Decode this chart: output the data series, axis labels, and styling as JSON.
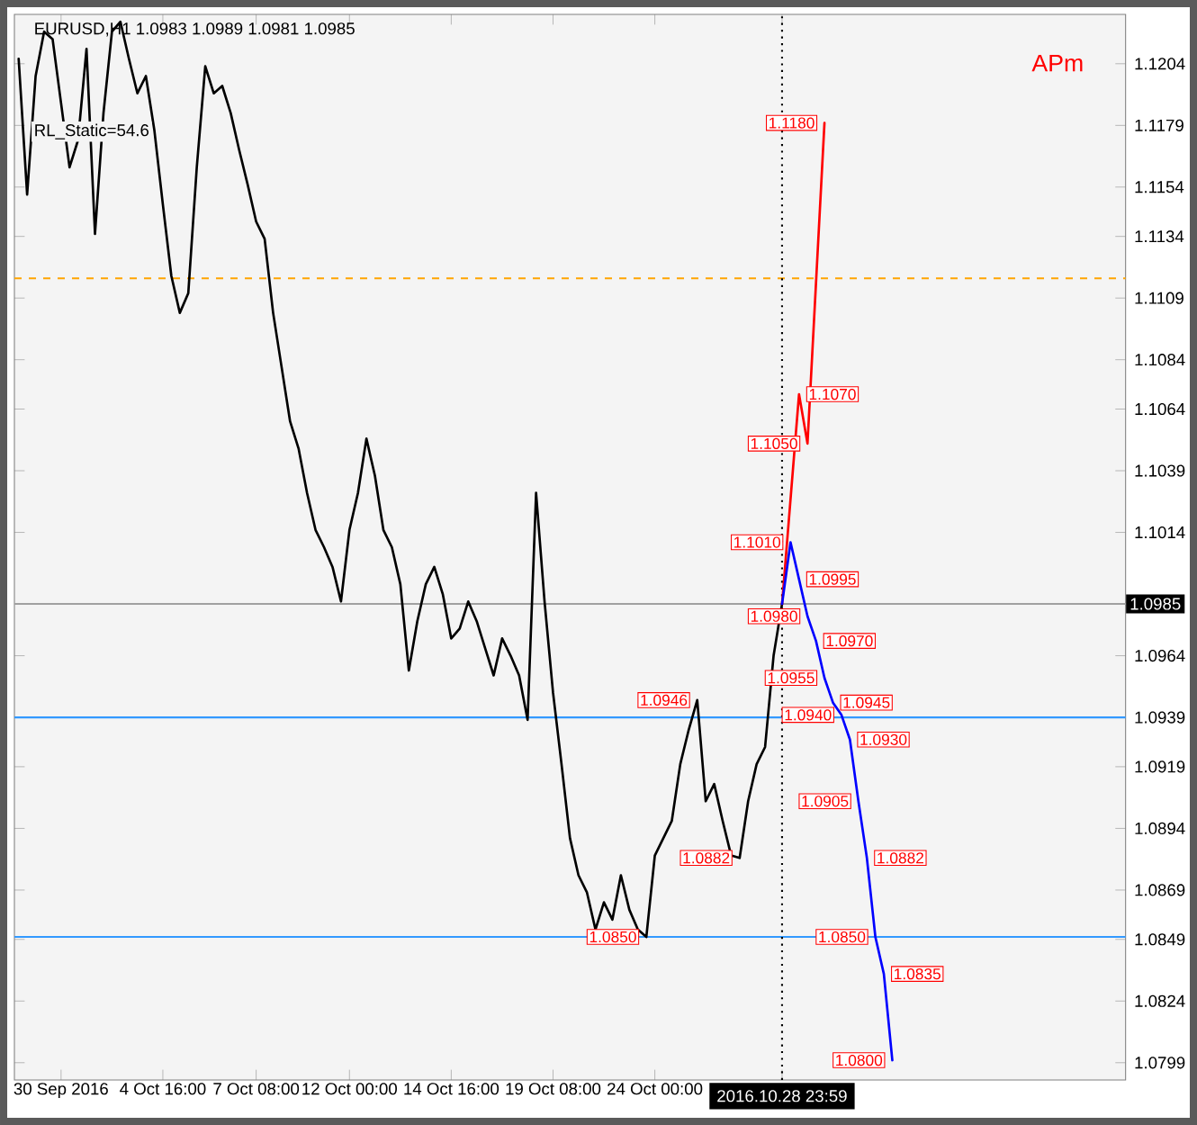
{
  "chart_data": {
    "type": "line",
    "title": "EURUSD,H1  1.0983 1.0989 1.0981 1.0985",
    "categories": [
      null,
      null,
      null,
      null,
      null,
      "30 Sep 2016",
      null,
      null,
      null,
      null,
      null,
      null,
      null,
      null,
      null,
      null,
      null,
      "4 Oct 16:00",
      null,
      null,
      null,
      null,
      null,
      null,
      null,
      null,
      null,
      null,
      "7 Oct 08:00",
      null,
      null,
      null,
      null,
      null,
      null,
      null,
      null,
      null,
      null,
      "12 Oct 00:00",
      null,
      null,
      null,
      null,
      null,
      null,
      null,
      null,
      null,
      null,
      null,
      "14 Oct 16:00",
      null,
      null,
      null,
      null,
      null,
      null,
      null,
      null,
      null,
      null,
      null,
      "19 Oct 08:00",
      null,
      null,
      null,
      null,
      null,
      null,
      null,
      null,
      null,
      null,
      null,
      "24 Oct 00:00",
      null,
      null,
      null,
      null,
      null,
      null,
      null,
      null,
      null,
      null,
      null,
      null,
      null,
      null,
      "2016.10.28 23:59",
      null,
      null,
      null,
      null,
      null,
      null,
      null,
      null,
      null,
      null,
      null,
      null,
      null,
      null,
      null,
      null,
      null,
      null,
      null,
      null,
      null,
      null,
      null,
      null,
      null,
      null,
      null,
      null,
      null,
      null,
      null,
      null,
      null,
      null,
      null,
      null,
      null,
      null,
      null,
      null
    ],
    "series": [
      {
        "color": "#000000",
        "values": [
          1.1206,
          1.1151,
          1.1199,
          1.1217,
          1.1214,
          1.1188,
          1.1162,
          1.1173,
          1.121,
          1.1135,
          1.1184,
          1.1217,
          1.1221,
          1.1206,
          1.1192,
          1.1199,
          1.1177,
          1.1147,
          1.1118,
          1.1103,
          1.1111,
          1.1162,
          1.1203,
          1.1192,
          1.1195,
          1.1184,
          1.1169,
          1.1155,
          1.114,
          1.1133,
          1.1103,
          1.1081,
          1.1059,
          1.1048,
          1.103,
          1.1015,
          1.1008,
          1.1,
          1.0986,
          1.1015,
          1.103,
          1.1052,
          1.1037,
          1.1015,
          1.1008,
          1.0993,
          1.0958,
          1.0978,
          1.0993,
          1.1,
          1.0989,
          1.0971,
          1.0975,
          1.0986,
          1.0978,
          1.0967,
          1.0956,
          1.0971,
          1.0964,
          1.0956,
          1.0938,
          1.103,
          1.0986,
          1.0949,
          1.092,
          1.089,
          1.0875,
          1.0868,
          1.0853,
          1.0864,
          1.0857,
          1.0875,
          1.0861,
          1.0853,
          1.085,
          1.0883,
          1.089,
          1.0897,
          1.092,
          1.0934,
          1.0946,
          1.0905,
          1.0912,
          1.0897,
          1.0883,
          1.0882,
          1.0905,
          1.092,
          1.0927,
          1.0964,
          1.0985,
          null,
          null,
          null,
          null,
          null,
          null,
          null,
          null,
          null,
          null,
          null,
          null,
          null,
          null,
          null,
          null,
          null,
          null,
          null,
          null,
          null,
          null,
          null,
          null,
          null,
          null,
          null,
          null,
          null,
          null,
          null,
          null,
          null,
          null,
          null,
          null,
          null,
          null,
          null,
          null
        ],
        "value_labels": [
          null,
          null,
          null,
          null,
          null,
          null,
          null,
          null,
          null,
          null,
          null,
          null,
          null,
          null,
          null,
          null,
          null,
          null,
          null,
          null,
          null,
          null,
          null,
          null,
          null,
          null,
          null,
          null,
          null,
          null,
          null,
          null,
          null,
          null,
          null,
          null,
          null,
          null,
          null,
          null,
          null,
          null,
          null,
          null,
          null,
          null,
          null,
          null,
          null,
          null,
          null,
          null,
          null,
          null,
          null,
          null,
          null,
          null,
          null,
          null,
          null,
          null,
          null,
          null,
          null,
          null,
          null,
          null,
          null,
          null,
          null,
          null,
          null,
          null,
          "1.0850",
          null,
          null,
          null,
          null,
          null,
          "1.0946",
          null,
          null,
          null,
          null,
          "1.0882",
          null,
          null,
          null,
          null,
          null,
          null,
          null,
          null,
          null,
          null,
          null,
          null,
          null,
          null,
          null,
          null,
          null,
          null,
          null,
          null,
          null,
          null,
          null,
          null,
          null,
          null,
          null,
          null,
          null,
          null,
          null,
          null,
          null,
          null,
          null,
          null,
          null,
          null,
          null,
          null,
          null,
          null,
          null,
          null,
          null
        ]
      },
      {
        "color": "#ff0000",
        "values": [
          null,
          null,
          null,
          null,
          null,
          null,
          null,
          null,
          null,
          null,
          null,
          null,
          null,
          null,
          null,
          null,
          null,
          null,
          null,
          null,
          null,
          null,
          null,
          null,
          null,
          null,
          null,
          null,
          null,
          null,
          null,
          null,
          null,
          null,
          null,
          null,
          null,
          null,
          null,
          null,
          null,
          null,
          null,
          null,
          null,
          null,
          null,
          null,
          null,
          null,
          null,
          null,
          null,
          null,
          null,
          null,
          null,
          null,
          null,
          null,
          null,
          null,
          null,
          null,
          null,
          null,
          null,
          null,
          null,
          null,
          null,
          null,
          null,
          null,
          null,
          null,
          null,
          null,
          null,
          null,
          null,
          null,
          null,
          null,
          null,
          null,
          null,
          null,
          null,
          null,
          1.0985,
          null,
          1.107,
          1.105,
          null,
          1.118,
          null,
          null,
          null,
          null,
          null,
          null,
          null,
          null,
          null,
          null,
          null,
          null,
          null,
          null,
          null,
          null,
          null,
          null,
          null,
          null,
          null,
          null,
          null,
          null,
          null,
          null,
          null,
          null,
          null,
          null,
          null,
          null,
          null,
          null,
          null
        ],
        "value_labels": [
          null,
          null,
          null,
          null,
          null,
          null,
          null,
          null,
          null,
          null,
          null,
          null,
          null,
          null,
          null,
          null,
          null,
          null,
          null,
          null,
          null,
          null,
          null,
          null,
          null,
          null,
          null,
          null,
          null,
          null,
          null,
          null,
          null,
          null,
          null,
          null,
          null,
          null,
          null,
          null,
          null,
          null,
          null,
          null,
          null,
          null,
          null,
          null,
          null,
          null,
          null,
          null,
          null,
          null,
          null,
          null,
          null,
          null,
          null,
          null,
          null,
          null,
          null,
          null,
          null,
          null,
          null,
          null,
          null,
          null,
          null,
          null,
          null,
          null,
          null,
          null,
          null,
          null,
          null,
          null,
          null,
          null,
          null,
          null,
          null,
          null,
          null,
          null,
          null,
          null,
          null,
          null,
          "1.1070",
          "1.1050",
          null,
          "1.1180",
          null,
          null,
          null,
          null,
          null,
          null,
          null,
          null,
          null,
          null,
          null,
          null,
          null,
          null,
          null,
          null,
          null,
          null,
          null,
          null,
          null,
          null,
          null,
          null,
          null,
          null,
          null,
          null,
          null,
          null,
          null,
          null,
          null,
          null,
          null
        ]
      },
      {
        "color": "#0000ff",
        "values": [
          null,
          null,
          null,
          null,
          null,
          null,
          null,
          null,
          null,
          null,
          null,
          null,
          null,
          null,
          null,
          null,
          null,
          null,
          null,
          null,
          null,
          null,
          null,
          null,
          null,
          null,
          null,
          null,
          null,
          null,
          null,
          null,
          null,
          null,
          null,
          null,
          null,
          null,
          null,
          null,
          null,
          null,
          null,
          null,
          null,
          null,
          null,
          null,
          null,
          null,
          null,
          null,
          null,
          null,
          null,
          null,
          null,
          null,
          null,
          null,
          null,
          null,
          null,
          null,
          null,
          null,
          null,
          null,
          null,
          null,
          null,
          null,
          null,
          null,
          null,
          null,
          null,
          null,
          null,
          null,
          null,
          null,
          null,
          null,
          null,
          null,
          null,
          null,
          null,
          null,
          1.0985,
          1.101,
          1.0995,
          1.098,
          1.097,
          1.0955,
          1.0945,
          1.094,
          1.093,
          1.0905,
          1.0882,
          1.085,
          1.0835,
          1.08,
          null,
          null,
          null,
          null,
          null,
          null,
          null,
          null,
          null,
          null,
          null,
          null,
          null,
          null,
          null,
          null,
          null,
          null,
          null,
          null,
          null,
          null,
          null,
          null,
          null,
          null,
          null
        ],
        "value_labels": [
          null,
          null,
          null,
          null,
          null,
          null,
          null,
          null,
          null,
          null,
          null,
          null,
          null,
          null,
          null,
          null,
          null,
          null,
          null,
          null,
          null,
          null,
          null,
          null,
          null,
          null,
          null,
          null,
          null,
          null,
          null,
          null,
          null,
          null,
          null,
          null,
          null,
          null,
          null,
          null,
          null,
          null,
          null,
          null,
          null,
          null,
          null,
          null,
          null,
          null,
          null,
          null,
          null,
          null,
          null,
          null,
          null,
          null,
          null,
          null,
          null,
          null,
          null,
          null,
          null,
          null,
          null,
          null,
          null,
          null,
          null,
          null,
          null,
          null,
          null,
          null,
          null,
          null,
          null,
          null,
          null,
          null,
          null,
          null,
          null,
          null,
          null,
          null,
          null,
          null,
          null,
          "1.1010",
          "1.0995",
          "1.0980",
          "1.0970",
          "1.0955",
          "1.0945",
          "1.0940",
          "1.0930",
          "1.0905",
          "1.0882",
          "1.0850",
          "1.0835",
          "1.0800",
          null,
          null,
          null,
          null,
          null,
          null,
          null,
          null,
          null,
          null,
          null,
          null,
          null,
          null,
          null,
          null,
          null,
          null,
          null,
          null,
          null,
          null,
          null,
          null,
          null,
          null,
          null
        ]
      }
    ],
    "ylim": [
      1.0792,
      1.1224
    ],
    "yticks": [
      1.0799,
      1.0824,
      1.0849,
      1.0869,
      1.0894,
      1.0919,
      1.0939,
      1.0964,
      1.1014,
      1.1039,
      1.1064,
      1.1084,
      1.1109,
      1.1134,
      1.1154,
      1.1179,
      1.1204
    ],
    "ref_lines": [
      {
        "axis": "y",
        "value": 1.0985,
        "label": "1.0985",
        "color": "#a0a0a0",
        "line_style": "solid"
      },
      {
        "axis": "y",
        "value": 1.0939,
        "color": "#3399ff",
        "line_style": "solid"
      },
      {
        "axis": "y",
        "value": 1.085,
        "color": "#3399ff",
        "line_style": "solid"
      },
      {
        "axis": "y",
        "value": 1.1117,
        "color": "#ffa500",
        "line_style": "dashed"
      },
      {
        "axis": "x",
        "value": "2016.10.28 23:59",
        "color": "#000000",
        "line_style": "dotted"
      }
    ],
    "annotations": [
      "RL_Static=54.6",
      "APm"
    ],
    "grid": false,
    "marker": "none",
    "line_style": "solid"
  }
}
